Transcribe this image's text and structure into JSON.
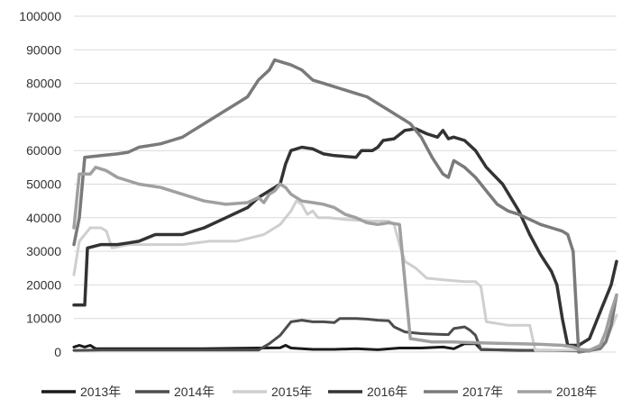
{
  "chart_data": {
    "type": "line",
    "title": "",
    "xlabel": "",
    "ylabel": "",
    "ylim": [
      0,
      100000
    ],
    "yticks": [
      0,
      10000,
      20000,
      30000,
      40000,
      50000,
      60000,
      70000,
      80000,
      90000,
      100000
    ],
    "ytick_labels": [
      "0",
      "10000",
      "20000",
      "30000",
      "40000",
      "50000",
      "60000",
      "70000",
      "80000",
      "90000",
      "100000"
    ],
    "x_range": [
      0,
      100
    ],
    "grid": "horizontal",
    "legend_position": "bottom",
    "series": [
      {
        "name": "2013年",
        "color": "#1a1a1a",
        "width": 3,
        "points": [
          [
            0,
            1500
          ],
          [
            1,
            2000
          ],
          [
            2,
            1500
          ],
          [
            3,
            2000
          ],
          [
            4,
            1000
          ],
          [
            8,
            1000
          ],
          [
            16,
            1000
          ],
          [
            24,
            1000
          ],
          [
            34,
            1200
          ],
          [
            38,
            1300
          ],
          [
            39,
            2000
          ],
          [
            40,
            1200
          ],
          [
            44,
            800
          ],
          [
            48,
            800
          ],
          [
            52,
            1000
          ],
          [
            56,
            700
          ],
          [
            60,
            1200
          ],
          [
            64,
            1200
          ],
          [
            68,
            1500
          ],
          [
            70,
            1000
          ],
          [
            72,
            2500
          ],
          [
            74,
            2500
          ],
          [
            75,
            800
          ],
          [
            82,
            500
          ],
          [
            88,
            500
          ]
        ]
      },
      {
        "name": "2014年",
        "color": "#4d4d4d",
        "width": 3,
        "points": [
          [
            0,
            500
          ],
          [
            5,
            600
          ],
          [
            12,
            600
          ],
          [
            20,
            600
          ],
          [
            26,
            600
          ],
          [
            34,
            600
          ],
          [
            36,
            2500
          ],
          [
            38,
            5000
          ],
          [
            40,
            9000
          ],
          [
            42,
            9500
          ],
          [
            44,
            9000
          ],
          [
            46,
            9000
          ],
          [
            48,
            8800
          ],
          [
            49,
            10000
          ],
          [
            52,
            10000
          ],
          [
            54,
            9800
          ],
          [
            56,
            9500
          ],
          [
            58,
            9300
          ],
          [
            59,
            7500
          ],
          [
            61,
            6000
          ],
          [
            64,
            5500
          ],
          [
            67,
            5300
          ],
          [
            69,
            5200
          ],
          [
            70,
            7000
          ],
          [
            72,
            7500
          ],
          [
            73,
            6500
          ],
          [
            74,
            5000
          ],
          [
            75,
            700
          ],
          [
            85,
            500
          ],
          [
            95,
            300
          ]
        ]
      },
      {
        "name": "2015年",
        "color": "#cfcfcf",
        "width": 3,
        "points": [
          [
            0,
            23000
          ],
          [
            1,
            33000
          ],
          [
            2,
            35000
          ],
          [
            3,
            37000
          ],
          [
            5,
            37000
          ],
          [
            6,
            36000
          ],
          [
            7,
            31000
          ],
          [
            10,
            32000
          ],
          [
            15,
            32000
          ],
          [
            20,
            32000
          ],
          [
            25,
            33000
          ],
          [
            30,
            33000
          ],
          [
            35,
            35000
          ],
          [
            38,
            38000
          ],
          [
            40,
            42000
          ],
          [
            41,
            45000
          ],
          [
            42,
            44000
          ],
          [
            43,
            41000
          ],
          [
            44,
            42000
          ],
          [
            45,
            40000
          ],
          [
            47,
            40000
          ],
          [
            50,
            39500
          ],
          [
            55,
            39000
          ],
          [
            58,
            39000
          ],
          [
            59,
            38000
          ],
          [
            60,
            32000
          ],
          [
            61,
            27000
          ],
          [
            63,
            25000
          ],
          [
            65,
            22000
          ],
          [
            68,
            21500
          ],
          [
            72,
            21000
          ],
          [
            74,
            21000
          ],
          [
            75,
            19500
          ],
          [
            76,
            9000
          ],
          [
            80,
            8000
          ],
          [
            84,
            8000
          ],
          [
            85,
            500
          ],
          [
            88,
            500
          ],
          [
            94,
            600
          ],
          [
            96,
            800
          ],
          [
            98,
            3000
          ],
          [
            99,
            7000
          ],
          [
            100,
            11000
          ]
        ]
      },
      {
        "name": "2016年",
        "color": "#333333",
        "width": 3.5,
        "points": [
          [
            0,
            14000
          ],
          [
            2,
            14000
          ],
          [
            2.5,
            31000
          ],
          [
            5,
            32000
          ],
          [
            8,
            32000
          ],
          [
            10,
            32500
          ],
          [
            12,
            33000
          ],
          [
            15,
            35000
          ],
          [
            20,
            35000
          ],
          [
            24,
            37000
          ],
          [
            28,
            40000
          ],
          [
            32,
            43000
          ],
          [
            34,
            46000
          ],
          [
            38,
            50000
          ],
          [
            39,
            56000
          ],
          [
            40,
            60000
          ],
          [
            42,
            61000
          ],
          [
            44,
            60500
          ],
          [
            46,
            59000
          ],
          [
            48,
            58500
          ],
          [
            52,
            58000
          ],
          [
            53,
            60000
          ],
          [
            55,
            60000
          ],
          [
            56,
            61000
          ],
          [
            57,
            63000
          ],
          [
            59,
            63500
          ],
          [
            61,
            66000
          ],
          [
            63,
            66500
          ],
          [
            65,
            65000
          ],
          [
            67,
            64000
          ],
          [
            68,
            66000
          ],
          [
            69,
            63500
          ],
          [
            70,
            64000
          ],
          [
            72,
            63000
          ],
          [
            74,
            60000
          ],
          [
            76,
            55000
          ],
          [
            79,
            50000
          ],
          [
            82,
            42000
          ],
          [
            84,
            35000
          ],
          [
            86,
            29000
          ],
          [
            88,
            24000
          ],
          [
            89,
            20000
          ],
          [
            90,
            10000
          ],
          [
            91,
            2000
          ],
          [
            93,
            2000
          ],
          [
            95,
            4000
          ],
          [
            97,
            12000
          ],
          [
            99,
            20000
          ],
          [
            100,
            27000
          ]
        ]
      },
      {
        "name": "2017年",
        "color": "#7a7a7a",
        "width": 3.5,
        "points": [
          [
            0,
            32000
          ],
          [
            1,
            40000
          ],
          [
            2,
            58000
          ],
          [
            5,
            58500
          ],
          [
            8,
            59000
          ],
          [
            10,
            59500
          ],
          [
            12,
            61000
          ],
          [
            16,
            62000
          ],
          [
            18,
            63000
          ],
          [
            20,
            64000
          ],
          [
            22,
            66000
          ],
          [
            24,
            68000
          ],
          [
            26,
            70000
          ],
          [
            28,
            72000
          ],
          [
            30,
            74000
          ],
          [
            32,
            76000
          ],
          [
            34,
            81000
          ],
          [
            36,
            84000
          ],
          [
            37,
            87000
          ],
          [
            38,
            86500
          ],
          [
            40,
            85500
          ],
          [
            42,
            84000
          ],
          [
            44,
            81000
          ],
          [
            46,
            80000
          ],
          [
            48,
            79000
          ],
          [
            50,
            78000
          ],
          [
            52,
            77000
          ],
          [
            54,
            76000
          ],
          [
            56,
            74000
          ],
          [
            58,
            72000
          ],
          [
            60,
            70000
          ],
          [
            62,
            68000
          ],
          [
            64,
            64000
          ],
          [
            66,
            58000
          ],
          [
            68,
            53000
          ],
          [
            69,
            52000
          ],
          [
            70,
            57000
          ],
          [
            72,
            55000
          ],
          [
            74,
            52000
          ],
          [
            76,
            48000
          ],
          [
            78,
            44000
          ],
          [
            80,
            42000
          ],
          [
            82,
            41000
          ],
          [
            84,
            39500
          ],
          [
            86,
            38000
          ],
          [
            88,
            37000
          ],
          [
            90,
            36000
          ],
          [
            91,
            35000
          ],
          [
            92,
            30000
          ],
          [
            93,
            0
          ],
          [
            95,
            500
          ],
          [
            97,
            1000
          ],
          [
            98,
            3000
          ],
          [
            99,
            8000
          ],
          [
            100,
            17000
          ]
        ]
      },
      {
        "name": "2018年",
        "color": "#a0a0a0",
        "width": 3.5,
        "points": [
          [
            0,
            37000
          ],
          [
            1,
            53000
          ],
          [
            3,
            53000
          ],
          [
            4,
            55000
          ],
          [
            6,
            54000
          ],
          [
            8,
            52000
          ],
          [
            12,
            50000
          ],
          [
            16,
            49000
          ],
          [
            20,
            47000
          ],
          [
            24,
            45000
          ],
          [
            28,
            44000
          ],
          [
            32,
            44500
          ],
          [
            34,
            46000
          ],
          [
            35,
            44500
          ],
          [
            36,
            47000
          ],
          [
            37,
            48000
          ],
          [
            38,
            50000
          ],
          [
            39,
            49000
          ],
          [
            40,
            47000
          ],
          [
            42,
            45000
          ],
          [
            44,
            44500
          ],
          [
            46,
            44000
          ],
          [
            48,
            43000
          ],
          [
            50,
            41000
          ],
          [
            52,
            40000
          ],
          [
            54,
            38500
          ],
          [
            56,
            38000
          ],
          [
            58,
            38500
          ],
          [
            60,
            38000
          ],
          [
            62,
            4000
          ],
          [
            64,
            3500
          ],
          [
            66,
            3000
          ],
          [
            68,
            3000
          ],
          [
            70,
            3000
          ],
          [
            74,
            2800
          ],
          [
            78,
            2600
          ],
          [
            82,
            2500
          ],
          [
            86,
            2300
          ],
          [
            90,
            2000
          ],
          [
            92,
            1500
          ],
          [
            93,
            800
          ],
          [
            95,
            500
          ],
          [
            97,
            2000
          ],
          [
            98,
            6000
          ],
          [
            99,
            12000
          ],
          [
            100,
            17000
          ]
        ]
      }
    ]
  }
}
